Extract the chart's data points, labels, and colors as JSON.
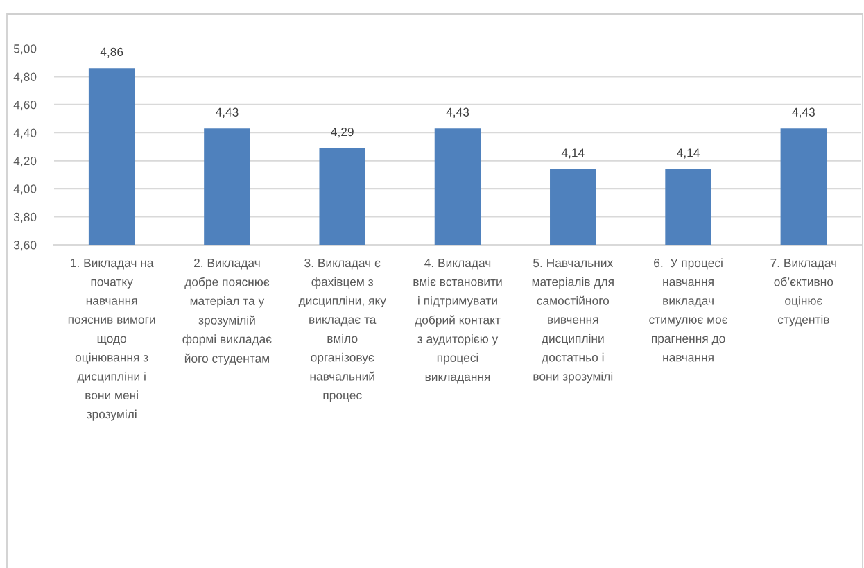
{
  "chart_data": {
    "type": "bar",
    "categories": [
      "1. Викладач на початку навчання пояснив вимоги щодо оцінювання з дисципліни і вони мені зрозумілі",
      "2. Викладач добре пояснює матеріал та у зрозумілій формі викладає його студентам",
      "3. Викладач є фахівцем з дисципліни, яку викладає та вміло організовує навчальний процес",
      "4. Викладач вміє встановити і підтримувати добрий контакт з аудиторією у процесі викладання",
      "5. Навчальних матеріалів для самостійного вивчення дисципліни достатньо і вони зрозумілі",
      "6.  У процесі навчання викладач стимулює моє прагнення до навчання",
      "7. Викладач об’єктивно оцінює студентів"
    ],
    "values": [
      4.86,
      4.43,
      4.29,
      4.43,
      4.14,
      4.14,
      4.43
    ],
    "value_labels": [
      "4,86",
      "4,43",
      "4,29",
      "4,43",
      "4,14",
      "4,14",
      "4,43"
    ],
    "color": "#4f81bd",
    "ylim": [
      3.6,
      5.0
    ],
    "yticks": [
      {
        "value": 3.6,
        "label": "3,60"
      },
      {
        "value": 3.8,
        "label": "3,80"
      },
      {
        "value": 4.0,
        "label": "4,00"
      },
      {
        "value": 4.2,
        "label": "4,20"
      },
      {
        "value": 4.4,
        "label": "4,40"
      },
      {
        "value": 4.6,
        "label": "4,60"
      },
      {
        "value": 4.8,
        "label": "4,80"
      },
      {
        "value": 5.0,
        "label": "5,00"
      }
    ],
    "grid": "y"
  }
}
